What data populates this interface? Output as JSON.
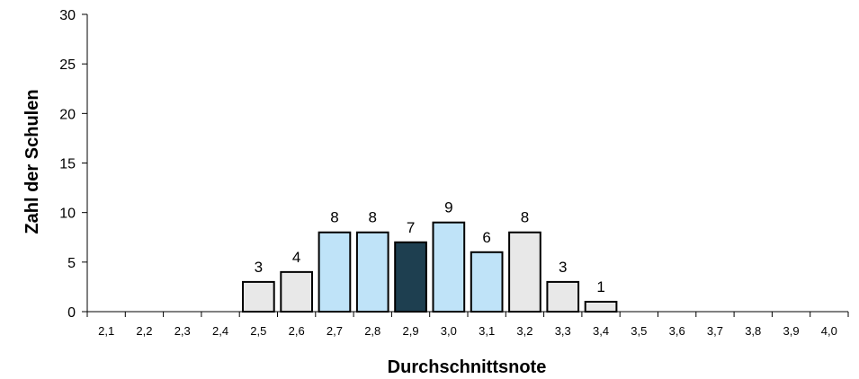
{
  "chart_data": {
    "type": "bar",
    "title": "",
    "xlabel": "Durchschnittsnote",
    "ylabel": "Zahl der Schulen",
    "ylim": [
      0,
      30
    ],
    "yticks": [
      "0",
      "5",
      "10",
      "15",
      "20",
      "25",
      "30"
    ],
    "grid": false,
    "legend": "none",
    "categories": [
      "2,1",
      "2,2",
      "2,3",
      "2,4",
      "2,5",
      "2,6",
      "2,7",
      "2,8",
      "2,9",
      "3,0",
      "3,1",
      "3,2",
      "3,3",
      "3,4",
      "3,5",
      "3,6",
      "3,7",
      "3,8",
      "3,9",
      "4,0"
    ],
    "values": [
      0,
      0,
      0,
      0,
      3,
      4,
      8,
      8,
      7,
      9,
      6,
      8,
      3,
      1,
      0,
      0,
      0,
      0,
      0,
      0
    ],
    "data_labels": [
      "",
      "",
      "",
      "",
      "3",
      "4",
      "8",
      "8",
      "7",
      "9",
      "6",
      "8",
      "3",
      "1",
      "",
      "",
      "",
      "",
      "",
      ""
    ],
    "bar_colors": [
      "#e8e8e8",
      "#e8e8e8",
      "#e8e8e8",
      "#e8e8e8",
      "#e8e8e8",
      "#e8e8e8",
      "#bfe3f8",
      "#bfe3f8",
      "#1e3f50",
      "#bfe3f8",
      "#bfe3f8",
      "#e8e8e8",
      "#e8e8e8",
      "#e8e8e8",
      "#e8e8e8",
      "#e8e8e8",
      "#e8e8e8",
      "#e8e8e8",
      "#e8e8e8",
      "#e8e8e8"
    ],
    "bar_outline": "#000000"
  }
}
